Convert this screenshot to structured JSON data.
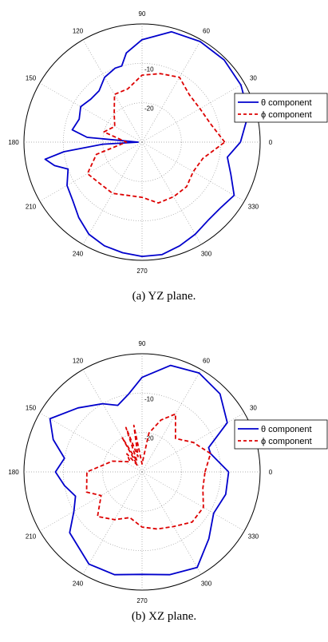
{
  "chart_data": [
    {
      "type": "polar-line",
      "caption": "(a)  YZ plane.",
      "angle_ticks": [
        "0",
        "30",
        "60",
        "90",
        "120",
        "150",
        "180",
        "210",
        "240",
        "270",
        "300",
        "330"
      ],
      "radial_ticks": [
        "-10",
        "-20"
      ],
      "r_range": [
        -30,
        0
      ],
      "legend": {
        "position": "right",
        "entries": [
          "θ component",
          "ϕ component"
        ]
      },
      "series": [
        {
          "name": "θ component",
          "color": "#0000cc",
          "style": "solid",
          "theta": [
            0,
            15,
            30,
            45,
            60,
            75,
            90,
            100,
            105,
            110,
            120,
            130,
            140,
            150,
            160,
            170,
            175,
            180,
            183,
            187,
            190,
            195,
            200,
            210,
            220,
            230,
            240,
            250,
            260,
            270,
            280,
            290,
            300,
            310,
            320,
            330,
            340,
            350,
            360
          ],
          "r": [
            -5,
            -2,
            -1,
            -0.5,
            -0.5,
            -1,
            -4,
            -7,
            -10,
            -10,
            -11,
            -13,
            -13,
            -12,
            -13,
            -12,
            -16,
            -29,
            -20,
            -10,
            -5,
            -7,
            -10,
            -8,
            -7,
            -5,
            -3,
            -2,
            -1.5,
            -1,
            -1,
            -2,
            -3,
            -4,
            -4,
            -3,
            -6,
            -8,
            -5
          ]
        },
        {
          "name": "ϕ component",
          "color": "#dd0000",
          "style": "dashed",
          "theta": [
            0,
            15,
            30,
            45,
            60,
            75,
            90,
            105,
            120,
            135,
            150,
            165,
            180,
            195,
            210,
            225,
            240,
            255,
            270,
            285,
            300,
            315,
            330,
            345,
            360
          ],
          "r": [
            -9,
            -12,
            -13,
            -13,
            -11,
            -12,
            -13,
            -16,
            -16,
            -20,
            -22,
            -20,
            -26,
            -18,
            -14,
            -15,
            -15,
            -16,
            -16,
            -14,
            -14,
            -14,
            -15,
            -14,
            -9
          ]
        }
      ]
    },
    {
      "type": "polar-line",
      "caption": "(b)  XZ plane.",
      "angle_ticks": [
        "0",
        "30",
        "60",
        "90",
        "120",
        "150",
        "180",
        "210",
        "240",
        "270",
        "300",
        "330"
      ],
      "radial_ticks": [
        "-10",
        "-20"
      ],
      "r_range": [
        -30,
        0
      ],
      "legend": {
        "position": "right",
        "entries": [
          "θ component",
          "ϕ component"
        ]
      },
      "series": [
        {
          "name": "θ component",
          "color": "#0000cc",
          "style": "solid",
          "theta": [
            0,
            15,
            20,
            30,
            45,
            60,
            75,
            90,
            100,
            110,
            120,
            135,
            150,
            160,
            170,
            180,
            190,
            200,
            210,
            220,
            240,
            255,
            270,
            285,
            300,
            315,
            330,
            345,
            360
          ],
          "r": [
            -8,
            -12,
            -12,
            -5,
            -2,
            -1,
            -2,
            -6,
            -10,
            -12,
            -10,
            -7,
            -3,
            -6,
            -10,
            -8,
            -10,
            -12,
            -10,
            -6,
            -3,
            -3,
            -4,
            -3,
            -2,
            -6,
            -9,
            -8,
            -8
          ]
        },
        {
          "name": "ϕ component",
          "color": "#dd0000",
          "style": "dashed",
          "theta": [
            0,
            15,
            30,
            45,
            60,
            70,
            80,
            90,
            100,
            105,
            110,
            115,
            120,
            125,
            130,
            140,
            160,
            180,
            200,
            210,
            225,
            240,
            255,
            270,
            285,
            300,
            315,
            330,
            345,
            360
          ],
          "r": [
            -14,
            -12,
            -15,
            -18,
            -13,
            -16,
            -20,
            -28,
            -18,
            -26,
            -18,
            -27,
            -20,
            -28,
            -24,
            -26,
            -22,
            -16,
            -15,
            -18,
            -14,
            -16,
            -18,
            -16,
            -15,
            -14,
            -12,
            -12,
            -14,
            -14
          ]
        }
      ]
    }
  ]
}
